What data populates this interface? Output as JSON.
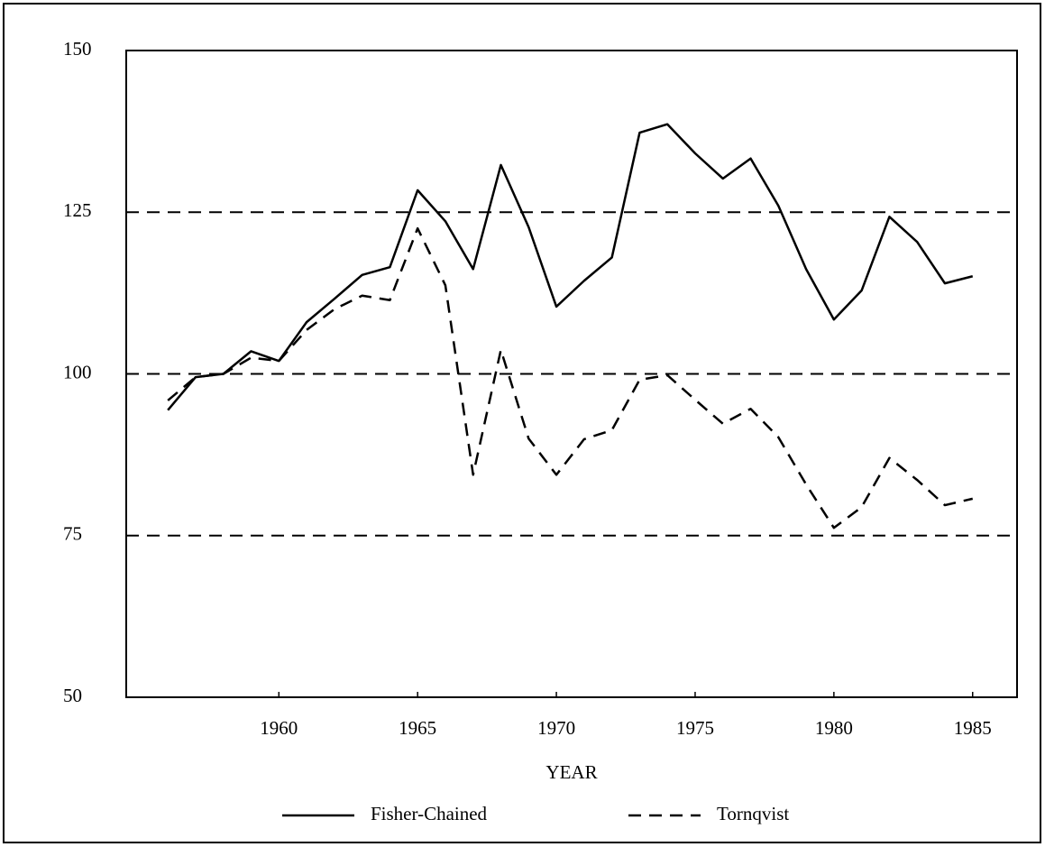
{
  "chart_data": {
    "type": "line",
    "xlabel": "YEAR",
    "x": [
      1956,
      1957,
      1958,
      1959,
      1960,
      1961,
      1962,
      1963,
      1964,
      1965,
      1966,
      1967,
      1968,
      1969,
      1970,
      1971,
      1972,
      1973,
      1974,
      1975,
      1976,
      1977,
      1978,
      1979,
      1980,
      1981,
      1982,
      1983,
      1984,
      1985
    ],
    "series": [
      {
        "name": "Fisher-Chained",
        "color": "#000000",
        "linestyle": "solid",
        "values": [
          94.4,
          99.5,
          100,
          103.5,
          102,
          108,
          111.6,
          115.3,
          116.5,
          128.4,
          123.6,
          116.2,
          132.3,
          122.7,
          110.4,
          114.4,
          118,
          137.3,
          138.6,
          134.1,
          130.2,
          133.3,
          126,
          116.2,
          108.4,
          112.9,
          124.3,
          120.4,
          114,
          115.1
        ]
      },
      {
        "name": "Tornqvist",
        "color": "#000000",
        "linestyle": "dashed",
        "values": [
          95.9,
          99.5,
          100,
          102.5,
          102,
          106.8,
          110,
          112.1,
          111.4,
          122.5,
          113.7,
          84.4,
          103.7,
          90,
          84.4,
          89.9,
          91.3,
          99.1,
          99.8,
          96,
          92.3,
          94.6,
          90.2,
          82.9,
          76.2,
          79.4,
          87,
          83.6,
          79.7,
          80.7
        ]
      }
    ],
    "xlim": [
      1954.5,
      1986.6
    ],
    "xticks": [
      1960,
      1965,
      1970,
      1975,
      1980,
      1985
    ],
    "ylim": [
      50,
      150
    ],
    "yticks": [
      50,
      75,
      100,
      125,
      150
    ],
    "grid": true,
    "grid_style": "dashed",
    "legend": "bottom"
  }
}
